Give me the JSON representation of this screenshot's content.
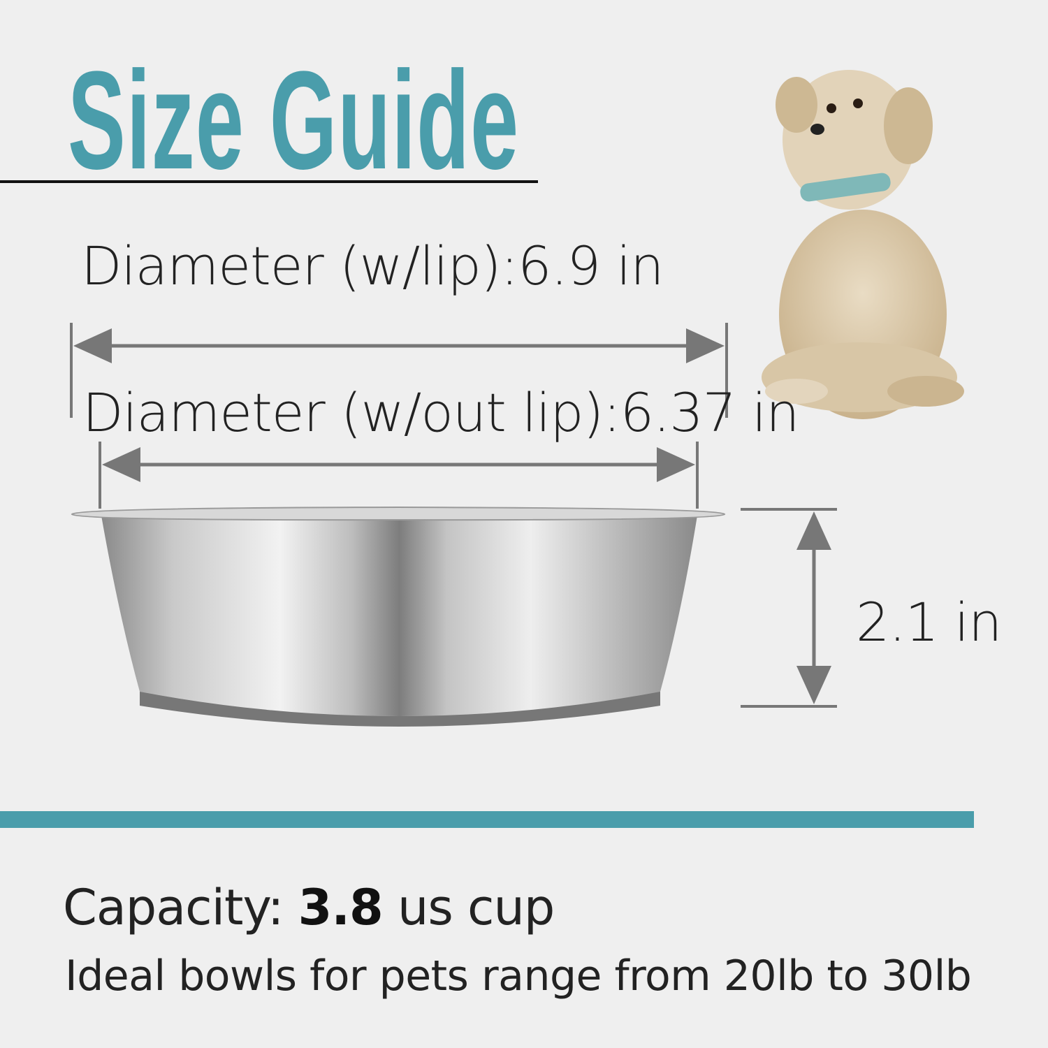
{
  "title": "Size Guide",
  "dimensions": {
    "diameter_with_lip": {
      "label": "Diameter (w/lip):",
      "value": "6.9 in"
    },
    "diameter_without_lip": {
      "label": "Diameter (w/out lip):",
      "value": "6.37 in"
    },
    "height": {
      "value": "2.1 in"
    }
  },
  "capacity": {
    "label": "Capacity:",
    "value": "3.8",
    "unit": "us cup"
  },
  "ideal_text": "Ideal bowls for pets range from 20lb to 30lb",
  "colors": {
    "accent": "#4a9dab",
    "background": "#efefef",
    "arrow": "#777777"
  }
}
